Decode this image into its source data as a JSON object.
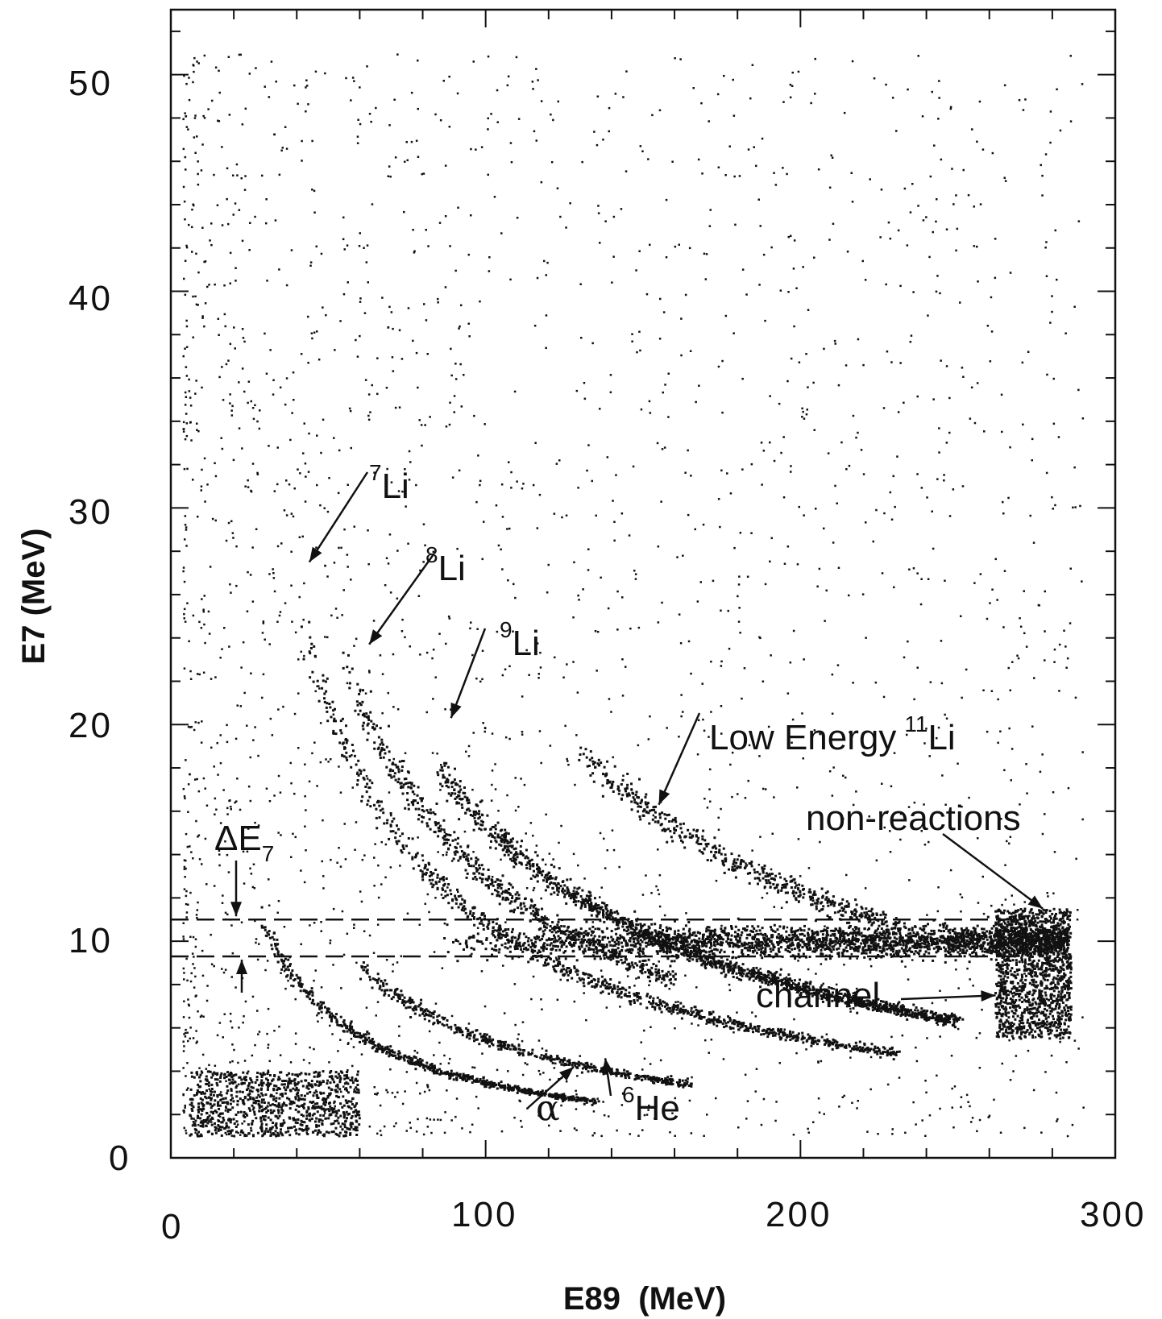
{
  "chart_data": {
    "type": "scatter",
    "xlabel": "E89  (MeV)",
    "ylabel": "E7 (MeV)",
    "xlim": [
      0,
      300
    ],
    "ylim": [
      0,
      53
    ],
    "x_ticks": [
      "0",
      "100",
      "200",
      "300"
    ],
    "y_ticks": [
      "0",
      "10",
      "20",
      "30",
      "40",
      "50"
    ],
    "grid": false,
    "legend": "none",
    "point_color": "#111111",
    "annotations": [
      {
        "mass": "7",
        "text": "Li",
        "arrow_to": [
          44,
          27.5
        ]
      },
      {
        "mass": "8",
        "text": "Li",
        "arrow_to": [
          63,
          23.7
        ]
      },
      {
        "mass": "9",
        "text": "Li",
        "arrow_to": [
          89,
          20.3
        ]
      },
      {
        "prefix": "Low Energy",
        "mass": "11",
        "text": "Li",
        "arrow_to": [
          155,
          16.3
        ]
      },
      {
        "text": "non-reactions",
        "arrow_to": [
          277,
          11.5
        ]
      },
      {
        "text": "channel",
        "arrow_to": [
          262,
          7.5
        ]
      },
      {
        "text": "α",
        "arrow_to": [
          128,
          4.2
        ]
      },
      {
        "mass": "6",
        "text": "He",
        "arrow_to": [
          138,
          4.6
        ]
      }
    ],
    "delta_label": {
      "main": "ΔE",
      "sub": "7"
    },
    "gate_lines_y": [
      11.0,
      9.3
    ],
    "series": [
      {
        "kind": "band",
        "curve": "7Li",
        "k": 1130,
        "x_range": [
          42,
          230
        ],
        "points": 900
      },
      {
        "kind": "band",
        "curve": "8Li",
        "k": 1350,
        "x_range": [
          55,
          160
        ],
        "points": 600
      },
      {
        "kind": "band",
        "curve": "9Li",
        "k": 1600,
        "x_range": [
          85,
          250
        ],
        "points": 1500
      },
      {
        "kind": "band",
        "curve": "Low Energy 11Li",
        "k": 2500,
        "x_range": [
          130,
          230
        ],
        "points": 500
      },
      {
        "kind": "band",
        "curve": "non-reactions",
        "y_center": 10,
        "x_range": [
          85,
          285
        ],
        "points": 2500
      },
      {
        "kind": "cluster",
        "curve": "channel",
        "x_range": [
          262,
          286
        ],
        "y_range": [
          5.5,
          11.5
        ],
        "points": 1400
      },
      {
        "kind": "band",
        "curve": "α",
        "k": 360,
        "x_range": [
          28,
          135
        ],
        "points": 700
      },
      {
        "kind": "band",
        "curve": "6He",
        "k": 570,
        "x_range": [
          60,
          165
        ],
        "points": 500
      },
      {
        "kind": "cluster",
        "curve": "low-energy background",
        "x_range": [
          6,
          60
        ],
        "y_range": [
          1,
          4
        ],
        "points": 900
      },
      {
        "kind": "scatter",
        "curve": "diffuse background",
        "x_range": [
          4,
          290
        ],
        "y_range": [
          1,
          51
        ],
        "points": 2400
      }
    ]
  }
}
